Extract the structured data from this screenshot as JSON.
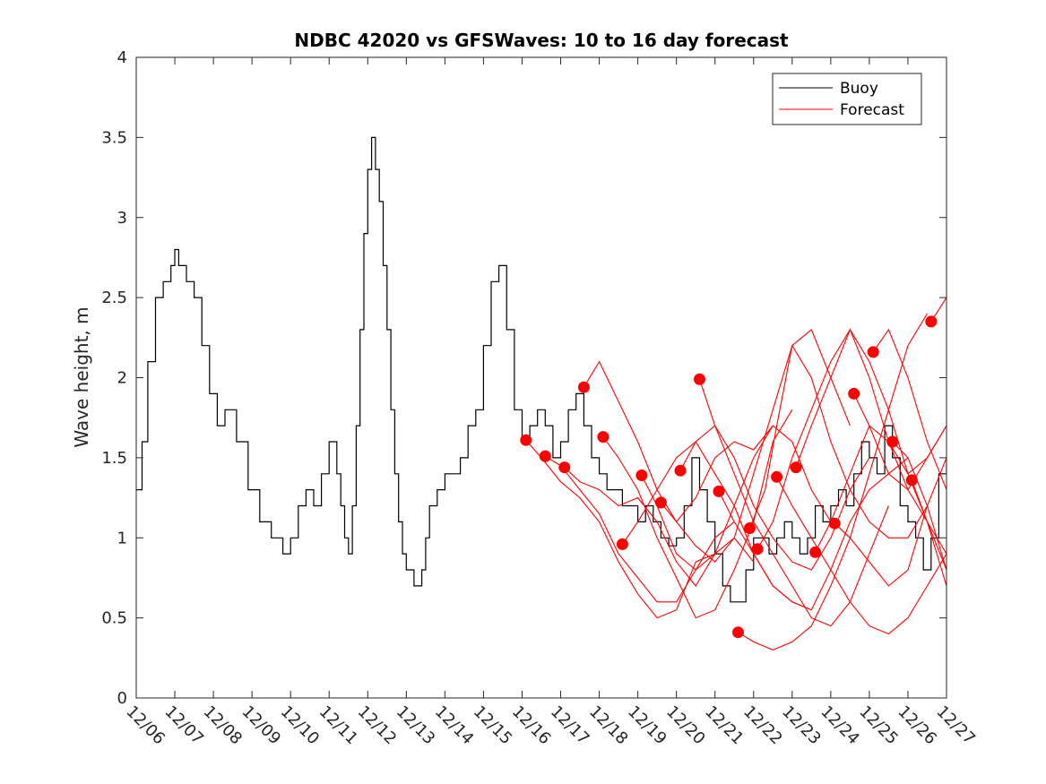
{
  "chart_data": {
    "type": "line",
    "title": "NDBC 42020 vs GFSWaves: 10 to 16 day forecast",
    "xlabel": "",
    "ylabel": "Wave height, m",
    "xlim": [
      0,
      21
    ],
    "ylim": [
      0,
      4
    ],
    "yticks": [
      0,
      0.5,
      1,
      1.5,
      2,
      2.5,
      3,
      3.5,
      4
    ],
    "ytick_labels": [
      "0",
      "0.5",
      "1",
      "1.5",
      "2",
      "2.5",
      "3",
      "3.5",
      "4"
    ],
    "xtick_labels": [
      "12/06",
      "12/07",
      "12/08",
      "12/09",
      "12/10",
      "12/11",
      "12/12",
      "12/13",
      "12/14",
      "12/15",
      "12/16",
      "12/17",
      "12/18",
      "12/19",
      "12/20",
      "12/21",
      "12/22",
      "12/23",
      "12/24",
      "12/25",
      "12/26",
      "12/27"
    ],
    "legend": {
      "placement": "top-right",
      "entries": [
        "Buoy",
        "Forecast"
      ]
    },
    "colors": {
      "buoy": "#000000",
      "forecast": "#ff0000"
    },
    "buoy": {
      "name": "Buoy",
      "x": [
        0,
        0.15,
        0.3,
        0.5,
        0.7,
        0.9,
        1.0,
        1.1,
        1.3,
        1.5,
        1.7,
        1.9,
        2.1,
        2.3,
        2.6,
        2.9,
        3.2,
        3.5,
        3.8,
        4.0,
        4.2,
        4.4,
        4.6,
        4.8,
        5.0,
        5.2,
        5.3,
        5.4,
        5.5,
        5.6,
        5.7,
        5.8,
        5.9,
        6.0,
        6.1,
        6.2,
        6.3,
        6.4,
        6.5,
        6.6,
        6.7,
        6.8,
        6.9,
        7.0,
        7.2,
        7.4,
        7.5,
        7.6,
        7.8,
        8.0,
        8.2,
        8.4,
        8.6,
        8.8,
        9.0,
        9.2,
        9.4,
        9.6,
        9.8,
        10.0,
        10.2,
        10.4,
        10.6,
        10.8,
        11.0,
        11.2,
        11.4,
        11.6,
        11.8,
        12.0,
        12.2,
        12.4,
        12.6,
        12.8,
        13.0,
        13.2,
        13.4,
        13.6,
        13.8,
        14.0,
        14.2,
        14.4,
        14.6,
        14.8,
        15.0,
        15.2,
        15.4,
        15.6,
        15.8,
        16.0,
        16.2,
        16.4,
        16.6,
        16.8,
        17.0,
        17.2,
        17.4,
        17.6,
        17.8,
        18.0,
        18.2,
        18.4,
        18.6,
        18.8,
        19.0,
        19.2,
        19.4,
        19.6,
        19.8,
        20.0,
        20.2,
        20.4,
        20.6,
        20.8,
        21.0
      ],
      "y": [
        1.3,
        1.6,
        2.1,
        2.5,
        2.6,
        2.7,
        2.8,
        2.7,
        2.6,
        2.5,
        2.2,
        1.9,
        1.7,
        1.8,
        1.6,
        1.3,
        1.1,
        1.0,
        0.9,
        1.0,
        1.2,
        1.3,
        1.2,
        1.4,
        1.6,
        1.4,
        1.2,
        1.0,
        0.9,
        1.2,
        1.7,
        2.3,
        2.9,
        3.3,
        3.5,
        3.3,
        3.1,
        2.7,
        2.3,
        1.8,
        1.4,
        1.1,
        0.9,
        0.8,
        0.7,
        0.8,
        1.0,
        1.2,
        1.3,
        1.4,
        1.4,
        1.5,
        1.7,
        1.8,
        2.2,
        2.6,
        2.7,
        2.3,
        1.8,
        1.6,
        1.7,
        1.8,
        1.7,
        1.5,
        1.6,
        1.8,
        1.9,
        1.7,
        1.5,
        1.4,
        1.3,
        1.3,
        1.2,
        1.2,
        1.1,
        1.2,
        1.1,
        1.0,
        0.95,
        1.0,
        1.2,
        1.5,
        1.3,
        1.1,
        0.9,
        0.7,
        0.6,
        0.6,
        0.8,
        1.0,
        1.0,
        0.9,
        1.0,
        1.1,
        1.0,
        0.9,
        1.0,
        1.2,
        1.1,
        1.2,
        1.3,
        1.2,
        1.4,
        1.6,
        1.5,
        1.4,
        1.7,
        1.5,
        1.2,
        1.1,
        1.0,
        0.8,
        1.0,
        1.4,
        1.5
      ]
    },
    "forecast_runs": [
      {
        "x": [
          10.1,
          10.5,
          11.0,
          11.5,
          12.0,
          12.5,
          13.0,
          13.5,
          14.0,
          14.5,
          15.0
        ],
        "y": [
          1.61,
          1.5,
          1.35,
          1.25,
          1.1,
          0.85,
          0.65,
          0.5,
          0.55,
          0.85,
          0.9
        ]
      },
      {
        "x": [
          10.6,
          11.0,
          11.5,
          12.0,
          12.5,
          13.0,
          13.5,
          14.0,
          14.5,
          15.0,
          15.5
        ],
        "y": [
          1.51,
          1.45,
          1.3,
          1.15,
          0.9,
          0.75,
          0.6,
          0.6,
          0.8,
          1.0,
          1.1
        ]
      },
      {
        "x": [
          11.1,
          11.5,
          12.0,
          12.5,
          13.0,
          13.5,
          14.0,
          14.5,
          15.0,
          15.5,
          16.0
        ],
        "y": [
          1.44,
          1.35,
          1.3,
          1.2,
          1.25,
          1.1,
          0.85,
          0.7,
          0.9,
          1.0,
          0.85
        ]
      },
      {
        "x": [
          11.6,
          12.0,
          12.5,
          13.0,
          13.5,
          14.0,
          14.5,
          15.0,
          15.5,
          16.0,
          16.5
        ],
        "y": [
          1.94,
          2.1,
          1.85,
          1.6,
          1.3,
          1.1,
          1.25,
          1.5,
          1.6,
          1.55,
          1.7
        ]
      },
      {
        "x": [
          12.1,
          12.5,
          13.0,
          13.5,
          14.0,
          14.5,
          15.0,
          15.5,
          16.0,
          16.5,
          17.0
        ],
        "y": [
          1.63,
          1.5,
          1.3,
          1.0,
          0.75,
          0.5,
          0.55,
          0.8,
          1.1,
          1.6,
          1.8
        ]
      },
      {
        "x": [
          12.6,
          13.0,
          13.5,
          14.0,
          14.5,
          15.0,
          15.5,
          16.0,
          16.5,
          17.0,
          17.5
        ],
        "y": [
          0.96,
          1.1,
          1.3,
          1.5,
          1.6,
          1.4,
          1.2,
          0.9,
          0.7,
          0.6,
          0.55
        ]
      },
      {
        "x": [
          13.1,
          13.5,
          14.0,
          14.5,
          15.0,
          15.5,
          16.0,
          16.5,
          17.0,
          17.5,
          18.0
        ],
        "y": [
          1.39,
          1.2,
          0.9,
          0.8,
          0.9,
          1.2,
          1.5,
          1.7,
          1.6,
          1.3,
          1.1
        ]
      },
      {
        "x": [
          13.6,
          14.0,
          14.5,
          15.0,
          15.5,
          16.0,
          16.5,
          17.0,
          17.5,
          18.0,
          18.5
        ],
        "y": [
          1.22,
          1.1,
          0.95,
          0.85,
          1.0,
          1.4,
          1.8,
          2.2,
          2.3,
          2.0,
          1.7
        ]
      },
      {
        "x": [
          14.1,
          14.5,
          15.0,
          15.5,
          16.0,
          16.5,
          17.0,
          17.5,
          18.0,
          18.5,
          19.0
        ],
        "y": [
          1.42,
          1.6,
          1.7,
          1.5,
          1.2,
          1.0,
          0.85,
          0.8,
          1.0,
          1.3,
          1.5
        ]
      },
      {
        "x": [
          14.6,
          15.0,
          15.5,
          16.0,
          16.5,
          17.0,
          17.5,
          18.0,
          18.5,
          19.0,
          19.5
        ],
        "y": [
          1.99,
          1.7,
          1.4,
          1.1,
          0.9,
          0.7,
          0.5,
          0.45,
          0.6,
          0.9,
          1.2
        ]
      },
      {
        "x": [
          15.1,
          15.5,
          16.0,
          16.5,
          17.0,
          17.5,
          18.0,
          18.5,
          19.0,
          19.5,
          20.0
        ],
        "y": [
          1.29,
          1.1,
          0.9,
          0.7,
          0.6,
          0.55,
          0.8,
          1.1,
          1.3,
          1.4,
          1.5
        ]
      },
      {
        "x": [
          15.6,
          16.0,
          16.5,
          17.0,
          17.5,
          18.0,
          18.5,
          19.0,
          19.5,
          20.0,
          20.5
        ],
        "y": [
          0.41,
          0.35,
          0.3,
          0.35,
          0.45,
          0.7,
          1.0,
          1.4,
          1.8,
          2.2,
          2.4
        ]
      },
      {
        "x": [
          15.9,
          16.3,
          16.6,
          17.0,
          17.5,
          18.0,
          18.5,
          19.0,
          19.5,
          20.0,
          20.5
        ],
        "y": [
          1.06,
          1.3,
          1.7,
          2.2,
          2.0,
          1.6,
          1.3,
          1.1,
          1.0,
          1.0,
          1.2
        ]
      },
      {
        "x": [
          16.1,
          16.5,
          17.0,
          17.5,
          18.0,
          18.5,
          19.0,
          19.5,
          20.0,
          20.5,
          21.0
        ],
        "y": [
          0.93,
          1.1,
          1.5,
          1.8,
          2.1,
          2.3,
          2.0,
          1.6,
          1.3,
          1.1,
          0.8
        ]
      },
      {
        "x": [
          16.6,
          17.0,
          17.5,
          18.0,
          18.5,
          19.0,
          19.5,
          20.0,
          20.5,
          21.0
        ],
        "y": [
          1.38,
          1.2,
          1.0,
          0.8,
          0.6,
          0.45,
          0.4,
          0.5,
          0.7,
          0.9
        ]
      },
      {
        "x": [
          17.1,
          17.5,
          18.0,
          18.5,
          19.0,
          19.5,
          20.0,
          20.5,
          21.0
        ],
        "y": [
          1.44,
          1.7,
          2.0,
          2.3,
          2.1,
          1.8,
          1.4,
          1.1,
          0.9
        ]
      },
      {
        "x": [
          17.6,
          18.0,
          18.5,
          19.0,
          19.5,
          20.0,
          20.5,
          21.0
        ],
        "y": [
          0.91,
          1.1,
          1.4,
          1.7,
          1.6,
          1.4,
          1.5,
          1.7
        ]
      },
      {
        "x": [
          18.1,
          18.5,
          19.0,
          19.5,
          20.0,
          20.5,
          21.0
        ],
        "y": [
          1.09,
          1.0,
          0.85,
          0.7,
          0.8,
          1.2,
          1.5
        ]
      },
      {
        "x": [
          18.6,
          19.0,
          19.5,
          20.0,
          20.5,
          21.0
        ],
        "y": [
          1.9,
          1.7,
          1.4,
          1.3,
          1.5,
          1.7
        ]
      },
      {
        "x": [
          19.1,
          19.5,
          20.0,
          20.5,
          21.0
        ],
        "y": [
          2.16,
          2.3,
          2.0,
          1.6,
          1.3
        ]
      },
      {
        "x": [
          19.6,
          20.0,
          20.5,
          21.0
        ],
        "y": [
          1.6,
          1.5,
          1.2,
          0.8
        ]
      },
      {
        "x": [
          20.1,
          20.5,
          21.0
        ],
        "y": [
          1.36,
          1.1,
          0.7
        ]
      },
      {
        "x": [
          20.6,
          21.0
        ],
        "y": [
          2.35,
          2.5
        ]
      }
    ],
    "forecast_points": {
      "name": "Forecast",
      "x": [
        10.1,
        10.6,
        11.1,
        11.6,
        12.1,
        12.6,
        13.1,
        13.6,
        14.1,
        14.6,
        15.1,
        15.6,
        15.9,
        16.1,
        16.6,
        17.1,
        17.6,
        18.1,
        18.6,
        19.1,
        19.6,
        20.1,
        20.6
      ],
      "y": [
        1.61,
        1.51,
        1.44,
        1.94,
        1.63,
        0.96,
        1.39,
        1.22,
        1.42,
        1.99,
        1.29,
        0.41,
        1.06,
        0.93,
        1.38,
        1.44,
        0.91,
        1.09,
        1.9,
        2.16,
        1.6,
        1.36,
        2.35
      ]
    }
  }
}
